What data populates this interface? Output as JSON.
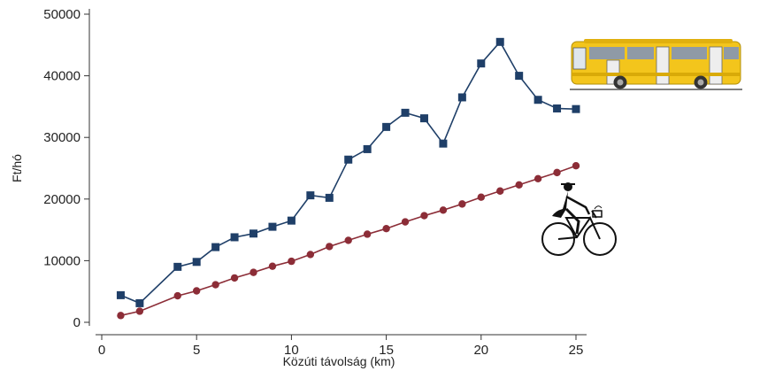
{
  "chart_data": {
    "type": "line",
    "title": "",
    "xlabel": "Közúti távolság (km)",
    "ylabel": "Ft/hó",
    "xlim": [
      0,
      25
    ],
    "ylim": [
      0,
      50000
    ],
    "xticks": [
      0,
      5,
      10,
      15,
      20,
      25
    ],
    "yticks": [
      0,
      10000,
      20000,
      30000,
      40000,
      50000
    ],
    "grid": false,
    "series": [
      {
        "color": "#1f3f68",
        "marker": "square",
        "x": [
          1,
          2,
          4,
          5,
          6,
          7,
          8,
          9,
          10,
          11,
          12,
          13,
          14,
          15,
          16,
          17,
          18,
          19,
          20,
          21,
          22,
          23,
          24,
          25
        ],
        "y": [
          4400,
          3100,
          9000,
          9800,
          12200,
          13800,
          14400,
          15500,
          16500,
          20600,
          20200,
          26400,
          28100,
          31700,
          34000,
          33100,
          29000,
          36500,
          42000,
          45500,
          40000,
          36100,
          34700,
          34600
        ]
      },
      {
        "color": "#8c2d37",
        "marker": "circle",
        "x": [
          1,
          2,
          4,
          5,
          6,
          7,
          8,
          9,
          10,
          11,
          12,
          13,
          14,
          15,
          16,
          17,
          18,
          19,
          20,
          21,
          22,
          23,
          24,
          25
        ],
        "y": [
          1100,
          1800,
          4300,
          5100,
          6100,
          7200,
          8100,
          9100,
          9900,
          11000,
          12300,
          13300,
          14300,
          15200,
          16300,
          17300,
          18200,
          19200,
          20300,
          21300,
          22300,
          23300,
          24300,
          25400
        ]
      }
    ],
    "icons": [
      "bus-icon",
      "cyclist-icon"
    ]
  }
}
